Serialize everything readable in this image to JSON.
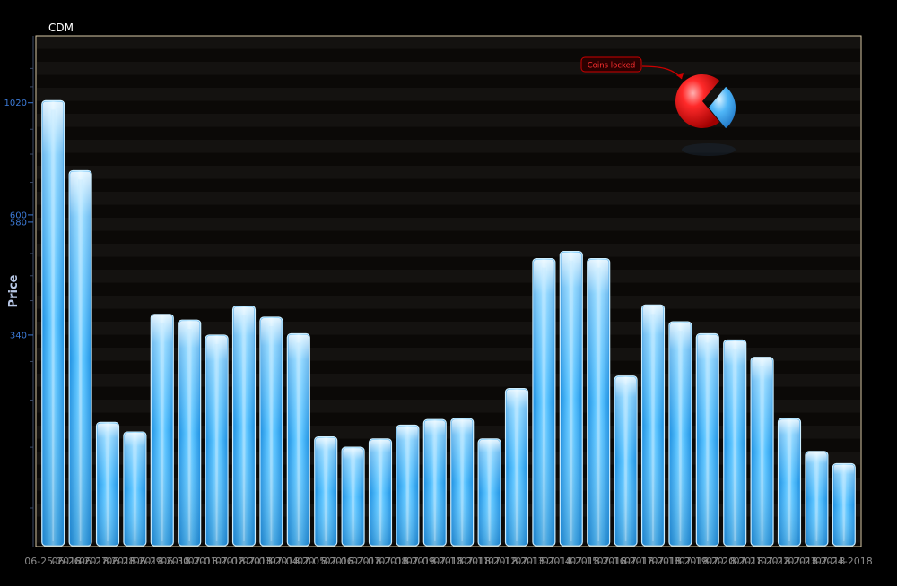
{
  "chart_data": {
    "type": "bar",
    "title": "CDM",
    "ylabel": "Price",
    "xlabel": "",
    "y_scale": "log",
    "ylim": [
      125,
      1400
    ],
    "y_ticks": [
      {
        "value": 1020,
        "label": "1020"
      },
      {
        "value": 600,
        "label": "600"
      },
      {
        "value": 580,
        "label": "580"
      },
      {
        "value": 340,
        "label": "340"
      }
    ],
    "categories": [
      "06-25-2018",
      "06-26-2018",
      "06-27-2018",
      "06-28-2018",
      "06-29-2018",
      "06-30-2018",
      "07-01-2018",
      "07-02-2018",
      "07-03-2018",
      "07-04-2018",
      "07-05-2018",
      "07-06-2018",
      "07-07-2018",
      "07-08-2018",
      "07-09-2018",
      "07-10-2018",
      "07-11-2018",
      "07-12-2018",
      "07-13-2018",
      "07-14-2018",
      "07-15-2018",
      "07-16-2018",
      "07-17-2018",
      "07-18-2018",
      "07-19-2018",
      "07-20-2018",
      "07-21-2018",
      "07-22-2018",
      "07-23-2018",
      "07-24-2018"
    ],
    "values": [
      1030,
      740,
      225,
      215,
      375,
      365,
      340,
      390,
      370,
      342,
      210,
      200,
      208,
      222,
      228,
      229,
      208,
      264,
      488,
      505,
      488,
      280,
      392,
      362,
      342,
      332,
      306,
      229,
      196,
      185
    ],
    "annotation": {
      "text": "Coins locked"
    },
    "inset_pie": {
      "slices": [
        0.72,
        0.28
      ],
      "colors": [
        "#ff1a1a",
        "#3fa9f5"
      ]
    },
    "colors": {
      "bar": "#3fb0f0",
      "bar_light": "#d6f0ff",
      "axis_text": "#3c7ad6",
      "frame": "#d8c9a6",
      "title": "#ffffff"
    }
  }
}
